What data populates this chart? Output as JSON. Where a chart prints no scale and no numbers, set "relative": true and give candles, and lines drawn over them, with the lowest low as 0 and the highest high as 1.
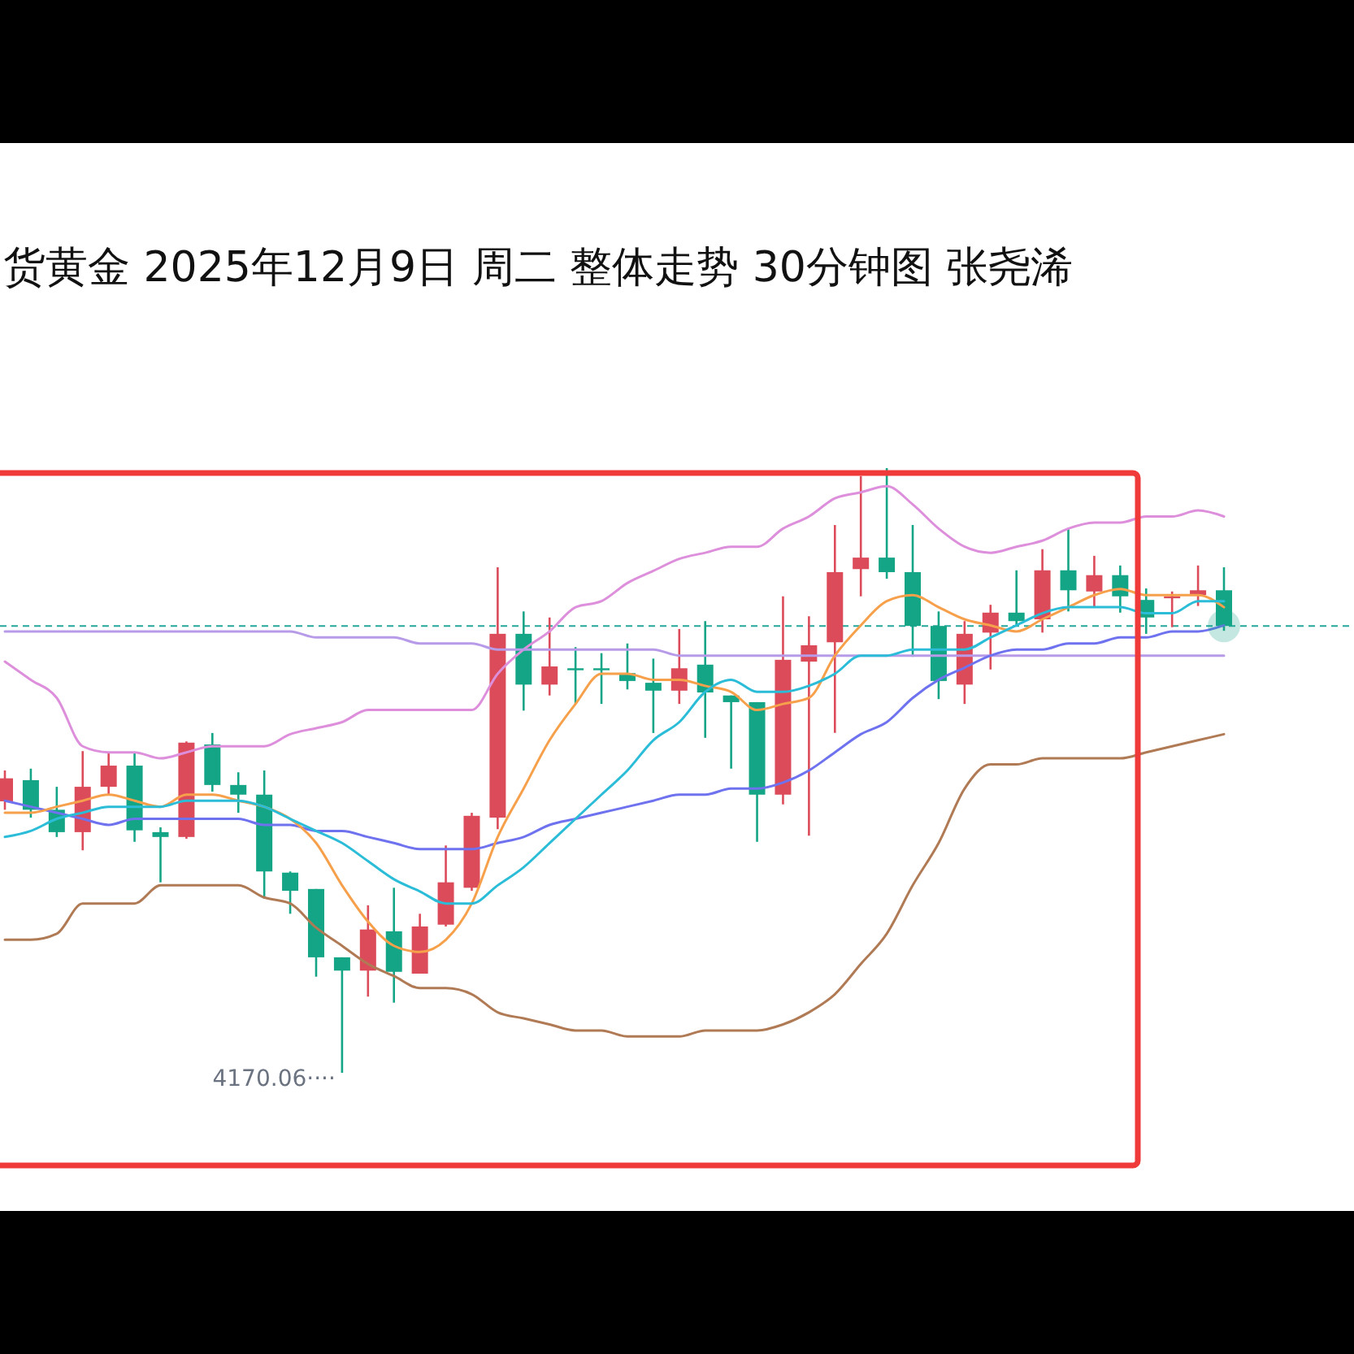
{
  "chart_data": {
    "type": "candlestick",
    "title": "货黄金 2025年12月9日 周二 整体走势 30分钟图 张尧浠",
    "relative": true,
    "categories": [
      null,
      null,
      null,
      null,
      null,
      null,
      null,
      null,
      null,
      null,
      null,
      null,
      null,
      null,
      null,
      null,
      null,
      null,
      null,
      null,
      null,
      null,
      null,
      null,
      null,
      null,
      null,
      null,
      null,
      null,
      null,
      null,
      null,
      null,
      null,
      null,
      null,
      null,
      null,
      null,
      null,
      null,
      null,
      null,
      null,
      null,
      null,
      null
    ],
    "ohlc": [
      [
        0.449,
        0.5,
        0.435,
        0.487
      ],
      [
        0.484,
        0.503,
        0.422,
        0.435
      ],
      [
        0.435,
        0.473,
        0.39,
        0.398
      ],
      [
        0.398,
        0.532,
        0.368,
        0.473
      ],
      [
        0.473,
        0.53,
        0.46,
        0.508
      ],
      [
        0.508,
        0.53,
        0.382,
        0.401
      ],
      [
        0.398,
        0.406,
        0.315,
        0.39
      ],
      [
        0.39,
        0.548,
        0.387,
        0.546
      ],
      [
        0.543,
        0.562,
        0.465,
        0.476
      ],
      [
        0.476,
        0.497,
        0.43,
        0.46
      ],
      [
        0.46,
        0.5,
        0.288,
        0.333
      ],
      [
        0.331,
        0.333,
        0.263,
        0.301
      ],
      [
        0.304,
        0.304,
        0.159,
        0.191
      ],
      [
        0.191,
        0.191,
        0,
        0.169
      ],
      [
        0.169,
        0.277,
        0.126,
        0.237
      ],
      [
        0.234,
        0.306,
        0.116,
        0.167
      ],
      [
        0.164,
        0.263,
        0.164,
        0.242
      ],
      [
        0.245,
        0.376,
        0.242,
        0.315
      ],
      [
        0.306,
        0.43,
        0.301,
        0.425
      ],
      [
        0.422,
        0.836,
        0.403,
        0.726
      ],
      [
        0.726,
        0.763,
        0.599,
        0.642
      ],
      [
        0.642,
        0.753,
        0.624,
        0.672
      ],
      [
        0.669,
        0.704,
        0.61,
        0.667
      ],
      [
        0.669,
        0.694,
        0.61,
        0.667
      ],
      [
        0.661,
        0.71,
        0.634,
        0.648
      ],
      [
        0.645,
        0.685,
        0.562,
        0.632
      ],
      [
        0.632,
        0.734,
        0.61,
        0.669
      ],
      [
        0.675,
        0.747,
        0.554,
        0.629
      ],
      [
        0.624,
        0.624,
        0.503,
        0.613
      ],
      [
        0.613,
        0.613,
        0.382,
        0.46
      ],
      [
        0.46,
        0.788,
        0.444,
        0.683
      ],
      [
        0.68,
        0.755,
        0.392,
        0.707
      ],
      [
        0.712,
        0.906,
        0.562,
        0.828
      ],
      [
        0.833,
        0.987,
        0.788,
        0.852
      ],
      [
        0.852,
        1,
        0.817,
        0.828
      ],
      [
        0.828,
        0.906,
        0.688,
        0.739
      ],
      [
        0.739,
        0.763,
        0.618,
        0.648
      ],
      [
        0.642,
        0.747,
        0.61,
        0.726
      ],
      [
        0.728,
        0.774,
        0.667,
        0.761
      ],
      [
        0.761,
        0.831,
        0.739,
        0.747
      ],
      [
        0.75,
        0.866,
        0.728,
        0.831
      ],
      [
        0.831,
        0.901,
        0.763,
        0.798
      ],
      [
        0.796,
        0.855,
        0.769,
        0.823
      ],
      [
        0.823,
        0.839,
        0.761,
        0.788
      ],
      [
        0.782,
        0.801,
        0.726,
        0.753
      ],
      [
        0.785,
        0.796,
        0.737,
        0.788
      ],
      [
        0.79,
        0.839,
        0.772,
        0.798
      ],
      [
        0.798,
        0.836,
        0.731,
        0.739
      ]
    ],
    "series": [
      {
        "type": "line",
        "color": "#dd8fdc",
        "values": [
          0.68,
          0.65,
          0.62,
          0.54,
          0.53,
          0.53,
          0.52,
          0.53,
          0.54,
          0.54,
          0.54,
          0.56,
          0.57,
          0.58,
          0.6,
          0.6,
          0.6,
          0.6,
          0.6,
          0.66,
          0.7,
          0.73,
          0.77,
          0.78,
          0.81,
          0.83,
          0.85,
          0.86,
          0.87,
          0.87,
          0.9,
          0.92,
          0.95,
          0.96,
          0.97,
          0.94,
          0.9,
          0.87,
          0.86,
          0.87,
          0.88,
          0.9,
          0.91,
          0.91,
          0.92,
          0.92,
          0.93,
          0.92
        ]
      },
      {
        "type": "line",
        "color": "#b07a55",
        "values": [
          0.22,
          0.22,
          0.23,
          0.28,
          0.28,
          0.28,
          0.31,
          0.31,
          0.31,
          0.31,
          0.29,
          0.28,
          0.24,
          0.21,
          0.18,
          0.16,
          0.14,
          0.14,
          0.13,
          0.1,
          0.09,
          0.08,
          0.07,
          0.07,
          0.06,
          0.06,
          0.06,
          0.07,
          0.07,
          0.07,
          0.08,
          0.1,
          0.13,
          0.18,
          0.23,
          0.31,
          0.38,
          0.47,
          0.51,
          0.51,
          0.52,
          0.52,
          0.52,
          0.52,
          0.53,
          0.54,
          0.55,
          0.56
        ]
      },
      {
        "type": "line",
        "color": "#b79be8",
        "values": [
          0.73,
          0.73,
          0.73,
          0.73,
          0.73,
          0.73,
          0.73,
          0.73,
          0.73,
          0.73,
          0.73,
          0.73,
          0.72,
          0.72,
          0.72,
          0.72,
          0.71,
          0.71,
          0.71,
          0.7,
          0.7,
          0.7,
          0.7,
          0.7,
          0.7,
          0.7,
          0.69,
          0.69,
          0.69,
          0.69,
          0.69,
          0.69,
          0.69,
          0.69,
          0.69,
          0.69,
          0.69,
          0.69,
          0.69,
          0.69,
          0.69,
          0.69,
          0.69,
          0.69,
          0.69,
          0.69,
          0.69,
          0.69
        ]
      },
      {
        "type": "line",
        "color": "#6f72ee",
        "values": [
          0.45,
          0.44,
          0.43,
          0.42,
          0.41,
          0.42,
          0.42,
          0.42,
          0.42,
          0.42,
          0.41,
          0.41,
          0.4,
          0.4,
          0.39,
          0.38,
          0.37,
          0.37,
          0.37,
          0.38,
          0.39,
          0.41,
          0.42,
          0.43,
          0.44,
          0.45,
          0.46,
          0.46,
          0.47,
          0.47,
          0.48,
          0.5,
          0.53,
          0.56,
          0.58,
          0.62,
          0.65,
          0.67,
          0.69,
          0.7,
          0.7,
          0.71,
          0.71,
          0.72,
          0.72,
          0.73,
          0.73,
          0.74
        ]
      },
      {
        "type": "line",
        "color": "#f7a04b",
        "values": [
          0.43,
          0.43,
          0.44,
          0.45,
          0.46,
          0.45,
          0.44,
          0.46,
          0.46,
          0.45,
          0.44,
          0.42,
          0.38,
          0.31,
          0.25,
          0.21,
          0.2,
          0.22,
          0.28,
          0.39,
          0.47,
          0.55,
          0.61,
          0.66,
          0.66,
          0.65,
          0.65,
          0.64,
          0.63,
          0.6,
          0.61,
          0.62,
          0.69,
          0.74,
          0.78,
          0.79,
          0.77,
          0.75,
          0.74,
          0.73,
          0.75,
          0.77,
          0.79,
          0.8,
          0.79,
          0.79,
          0.79,
          0.77
        ]
      },
      {
        "type": "line",
        "color": "#2bbcd8",
        "values": [
          0.39,
          0.4,
          0.42,
          0.43,
          0.44,
          0.44,
          0.44,
          0.45,
          0.45,
          0.45,
          0.44,
          0.42,
          0.4,
          0.38,
          0.35,
          0.32,
          0.3,
          0.28,
          0.28,
          0.31,
          0.34,
          0.38,
          0.42,
          0.46,
          0.5,
          0.55,
          0.58,
          0.63,
          0.65,
          0.63,
          0.63,
          0.64,
          0.66,
          0.69,
          0.69,
          0.7,
          0.7,
          0.7,
          0.72,
          0.74,
          0.76,
          0.77,
          0.77,
          0.77,
          0.76,
          0.76,
          0.78,
          0.78
        ]
      }
    ],
    "ref_lines": [
      {
        "axis": "y",
        "value": 0.739,
        "color": "#26a69a",
        "line_style": "dashed"
      }
    ],
    "annotations": [
      "4170.06····"
    ]
  }
}
